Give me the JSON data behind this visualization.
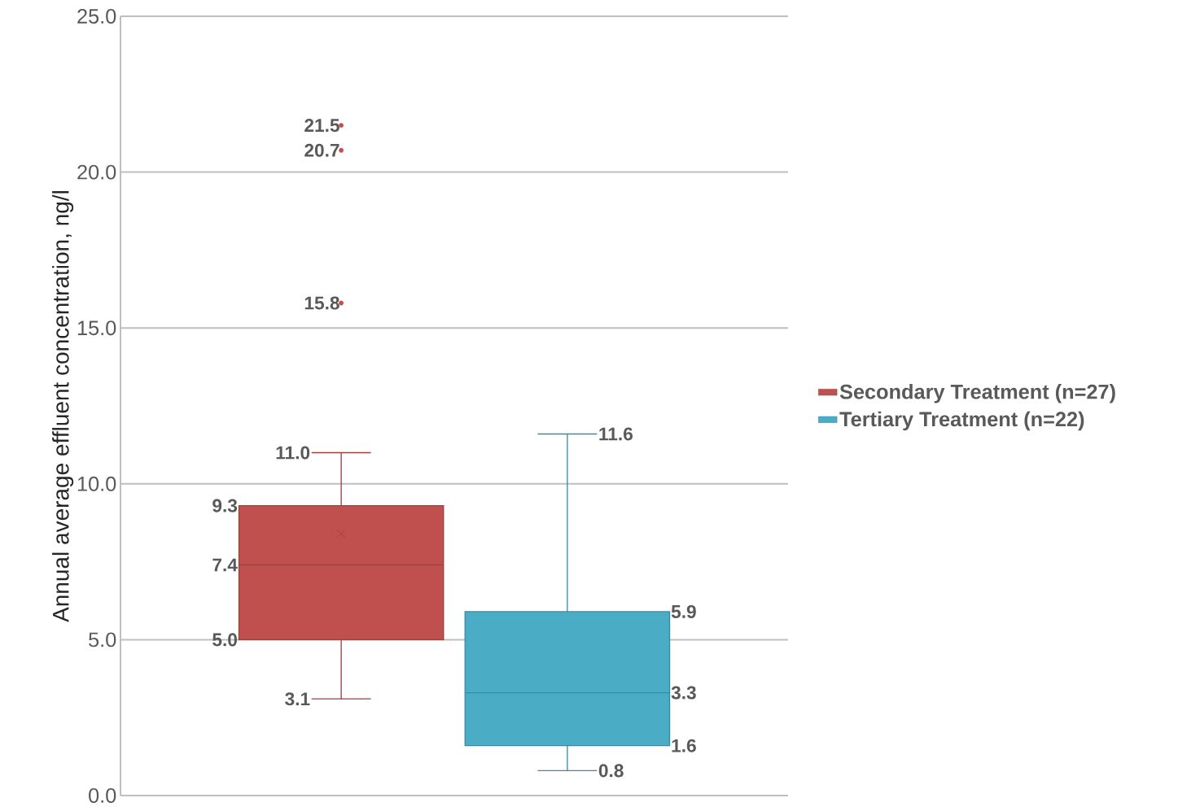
{
  "chart_data": {
    "type": "box",
    "ylabel": "Annual average effluent concentration, ng/l",
    "categories": [
      null
    ],
    "ylim": [
      0,
      25
    ],
    "yticks": [
      {
        "value": 0,
        "label": "0.0"
      },
      {
        "value": 5,
        "label": "5.0"
      },
      {
        "value": 10,
        "label": "10.0"
      },
      {
        "value": 15,
        "label": "15.0"
      },
      {
        "value": 20,
        "label": "20.0"
      },
      {
        "value": 25,
        "label": "25.0"
      }
    ],
    "grid": "y",
    "legend": "right",
    "data_labels": true,
    "series": [
      {
        "name": "Secondary Treatment (n=27)",
        "color": "#c0504d",
        "boxes": [
          {
            "low": 3.1,
            "q1": 5.0,
            "median": 7.4,
            "q3": 9.3,
            "high": 11.0,
            "mean": 8.4,
            "outliers": [
              15.8,
              20.7,
              21.5
            ]
          }
        ]
      },
      {
        "name": "Tertiary Treatment (n=22)",
        "color": "#4bacc6",
        "boxes": [
          {
            "low": 0.8,
            "q1": 1.6,
            "median": 3.3,
            "q3": 5.9,
            "high": 11.6
          }
        ]
      }
    ],
    "annotations": [
      "3.1",
      "5.0",
      "7.4",
      "9.3",
      "11.0",
      "15.8",
      "20.7",
      "21.5",
      "0.8",
      "1.6",
      "3.3",
      "5.9",
      "11.6"
    ]
  }
}
